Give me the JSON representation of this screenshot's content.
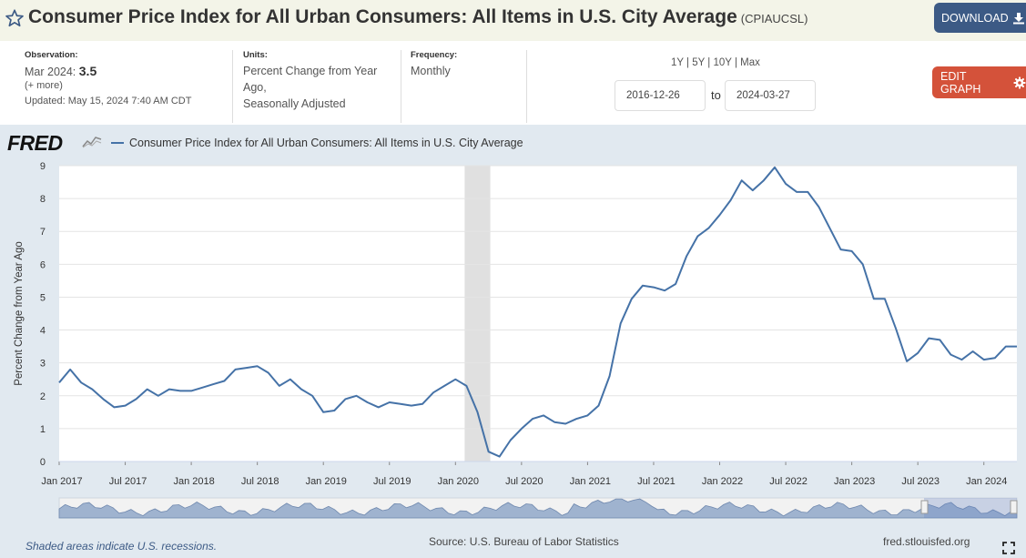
{
  "header": {
    "title": "Consumer Price Index for All Urban Consumers: All Items in U.S. City Average",
    "series_id": "(CPIAUCSL)",
    "download_label": "DOWNLOAD",
    "star_icon": "star-outline-icon",
    "download_icon": "download-icon"
  },
  "meta": {
    "observation_label": "Observation:",
    "observation_date": "Mar 2024:",
    "observation_value": "3.5",
    "more_link": "(+ more)",
    "updated_prefix": "Updated:",
    "updated_value": "May 15, 2024 7:40 AM CDT",
    "units_label": "Units:",
    "units_value_1": "Percent Change from Year",
    "units_value_2": "Ago,",
    "units_value_3": "Seasonally Adjusted",
    "frequency_label": "Frequency:",
    "frequency_value": "Monthly"
  },
  "controls": {
    "ranges": [
      "1Y",
      "5Y",
      "10Y",
      "Max"
    ],
    "range_sep": " | ",
    "start_date": "2016-12-26",
    "to_label": "to",
    "end_date": "2024-03-27",
    "edit_label": "EDIT GRAPH",
    "edit_icon": "gear-icon"
  },
  "footer": {
    "recession_note": "Shaded areas indicate U.S. recessions.",
    "source": "Source: U.S. Bureau of Labor Statistics",
    "site": "fred.stlouisfed.org",
    "fullscreen_icon": "fullscreen-icon"
  },
  "logo": {
    "text": "FRED"
  },
  "colors": {
    "line": "#4572a7",
    "header_bg": "#f3f4e8",
    "chart_bg": "#e1e9f0",
    "download": "#3c5a85",
    "edit": "#d4523a",
    "recession": "#e0e0e0"
  },
  "chart_data": {
    "type": "line",
    "title": "",
    "ylabel": "Percent Change from Year Ago",
    "ylim": [
      0,
      9
    ],
    "yticks": [
      0,
      1,
      2,
      3,
      4,
      5,
      6,
      7,
      8,
      9
    ],
    "xlabels": [
      "Jan 2017",
      "Jul 2017",
      "Jan 2018",
      "Jul 2018",
      "Jan 2019",
      "Jul 2019",
      "Jan 2020",
      "Jul 2020",
      "Jan 2021",
      "Jul 2021",
      "Jan 2022",
      "Jul 2022",
      "Jan 2023",
      "Jul 2023",
      "Jan 2024"
    ],
    "start": "2017-01",
    "recession": {
      "start": "2020-02",
      "end": "2020-04"
    },
    "grid": true,
    "series": [
      {
        "name": "Consumer Price Index for All Urban Consumers: All Items in U.S. City Average",
        "values": [
          2.4,
          2.8,
          2.4,
          2.2,
          1.9,
          1.65,
          1.7,
          1.9,
          2.2,
          2.0,
          2.2,
          2.15,
          2.15,
          2.25,
          2.35,
          2.45,
          2.8,
          2.85,
          2.9,
          2.7,
          2.3,
          2.5,
          2.2,
          2.0,
          1.5,
          1.55,
          1.9,
          2.0,
          1.8,
          1.65,
          1.8,
          1.75,
          1.7,
          1.75,
          2.1,
          2.3,
          2.5,
          2.3,
          1.5,
          0.3,
          0.15,
          0.65,
          1.0,
          1.3,
          1.4,
          1.2,
          1.15,
          1.3,
          1.4,
          1.7,
          2.6,
          4.2,
          4.95,
          5.35,
          5.3,
          5.2,
          5.4,
          6.25,
          6.85,
          7.1,
          7.5,
          7.95,
          8.55,
          8.25,
          8.55,
          8.95,
          8.45,
          8.2,
          8.2,
          7.75,
          7.1,
          6.45,
          6.4,
          6.0,
          4.95,
          4.95,
          4.05,
          3.05,
          3.3,
          3.75,
          3.7,
          3.25,
          3.1,
          3.35,
          3.1,
          3.15,
          3.5,
          3.5
        ]
      }
    ]
  }
}
